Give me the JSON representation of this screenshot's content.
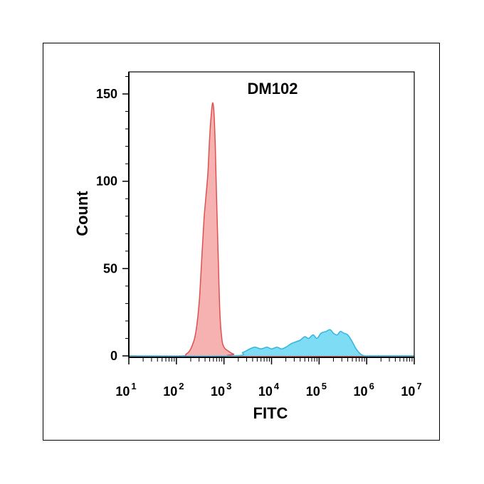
{
  "chart_data": {
    "type": "area",
    "title": "DM102",
    "xlabel": "FITC",
    "ylabel": "Count",
    "x_scale": "log",
    "xlim": [
      10,
      10000000
    ],
    "ylim": [
      0,
      160
    ],
    "x_ticks": [
      {
        "base": "10",
        "exp": "1",
        "value": 10
      },
      {
        "base": "10",
        "exp": "2",
        "value": 100
      },
      {
        "base": "10",
        "exp": "3",
        "value": 1000
      },
      {
        "base": "10",
        "exp": "4",
        "value": 10000
      },
      {
        "base": "10",
        "exp": "5",
        "value": 100000
      },
      {
        "base": "10",
        "exp": "6",
        "value": 1000000
      },
      {
        "base": "10",
        "exp": "7",
        "value": 10000000
      }
    ],
    "y_ticks": [
      {
        "label": "0",
        "value": 0
      },
      {
        "label": "50",
        "value": 50
      },
      {
        "label": "100",
        "value": 100
      },
      {
        "label": "150",
        "value": 150
      }
    ],
    "grid": false,
    "series": [
      {
        "color": "#f4a3a3",
        "stroke": "#e0504f",
        "x": [
          10,
          120,
          160,
          200,
          250,
          300,
          340,
          380,
          420,
          460,
          500,
          540,
          580,
          620,
          660,
          700,
          760,
          820,
          900,
          1000,
          1200,
          1600,
          2500,
          10000000
        ],
        "y": [
          0,
          0,
          1,
          4,
          12,
          30,
          55,
          78,
          92,
          105,
          125,
          138,
          145,
          138,
          118,
          90,
          55,
          25,
          10,
          5,
          3,
          1,
          0,
          0
        ]
      },
      {
        "color": "#67d6f2",
        "stroke": "#2fb6e0",
        "x": [
          10,
          1500,
          2500,
          3500,
          4500,
          6000,
          8000,
          10000,
          13000,
          16000,
          20000,
          26000,
          32000,
          40000,
          50000,
          60000,
          75000,
          90000,
          110000,
          140000,
          170000,
          200000,
          240000,
          280000,
          330000,
          400000,
          500000,
          600000,
          750000,
          900000,
          1200000,
          2000000,
          10000000
        ],
        "y": [
          0,
          0,
          2,
          4,
          5,
          4,
          5,
          4,
          5,
          4,
          5,
          7,
          8,
          9,
          11,
          10,
          12,
          10,
          13,
          14,
          15,
          13,
          12,
          14,
          13,
          12,
          8,
          4,
          1,
          0,
          0,
          0,
          0
        ]
      }
    ]
  },
  "colors": {
    "axis": "#000000",
    "background": "#ffffff"
  }
}
